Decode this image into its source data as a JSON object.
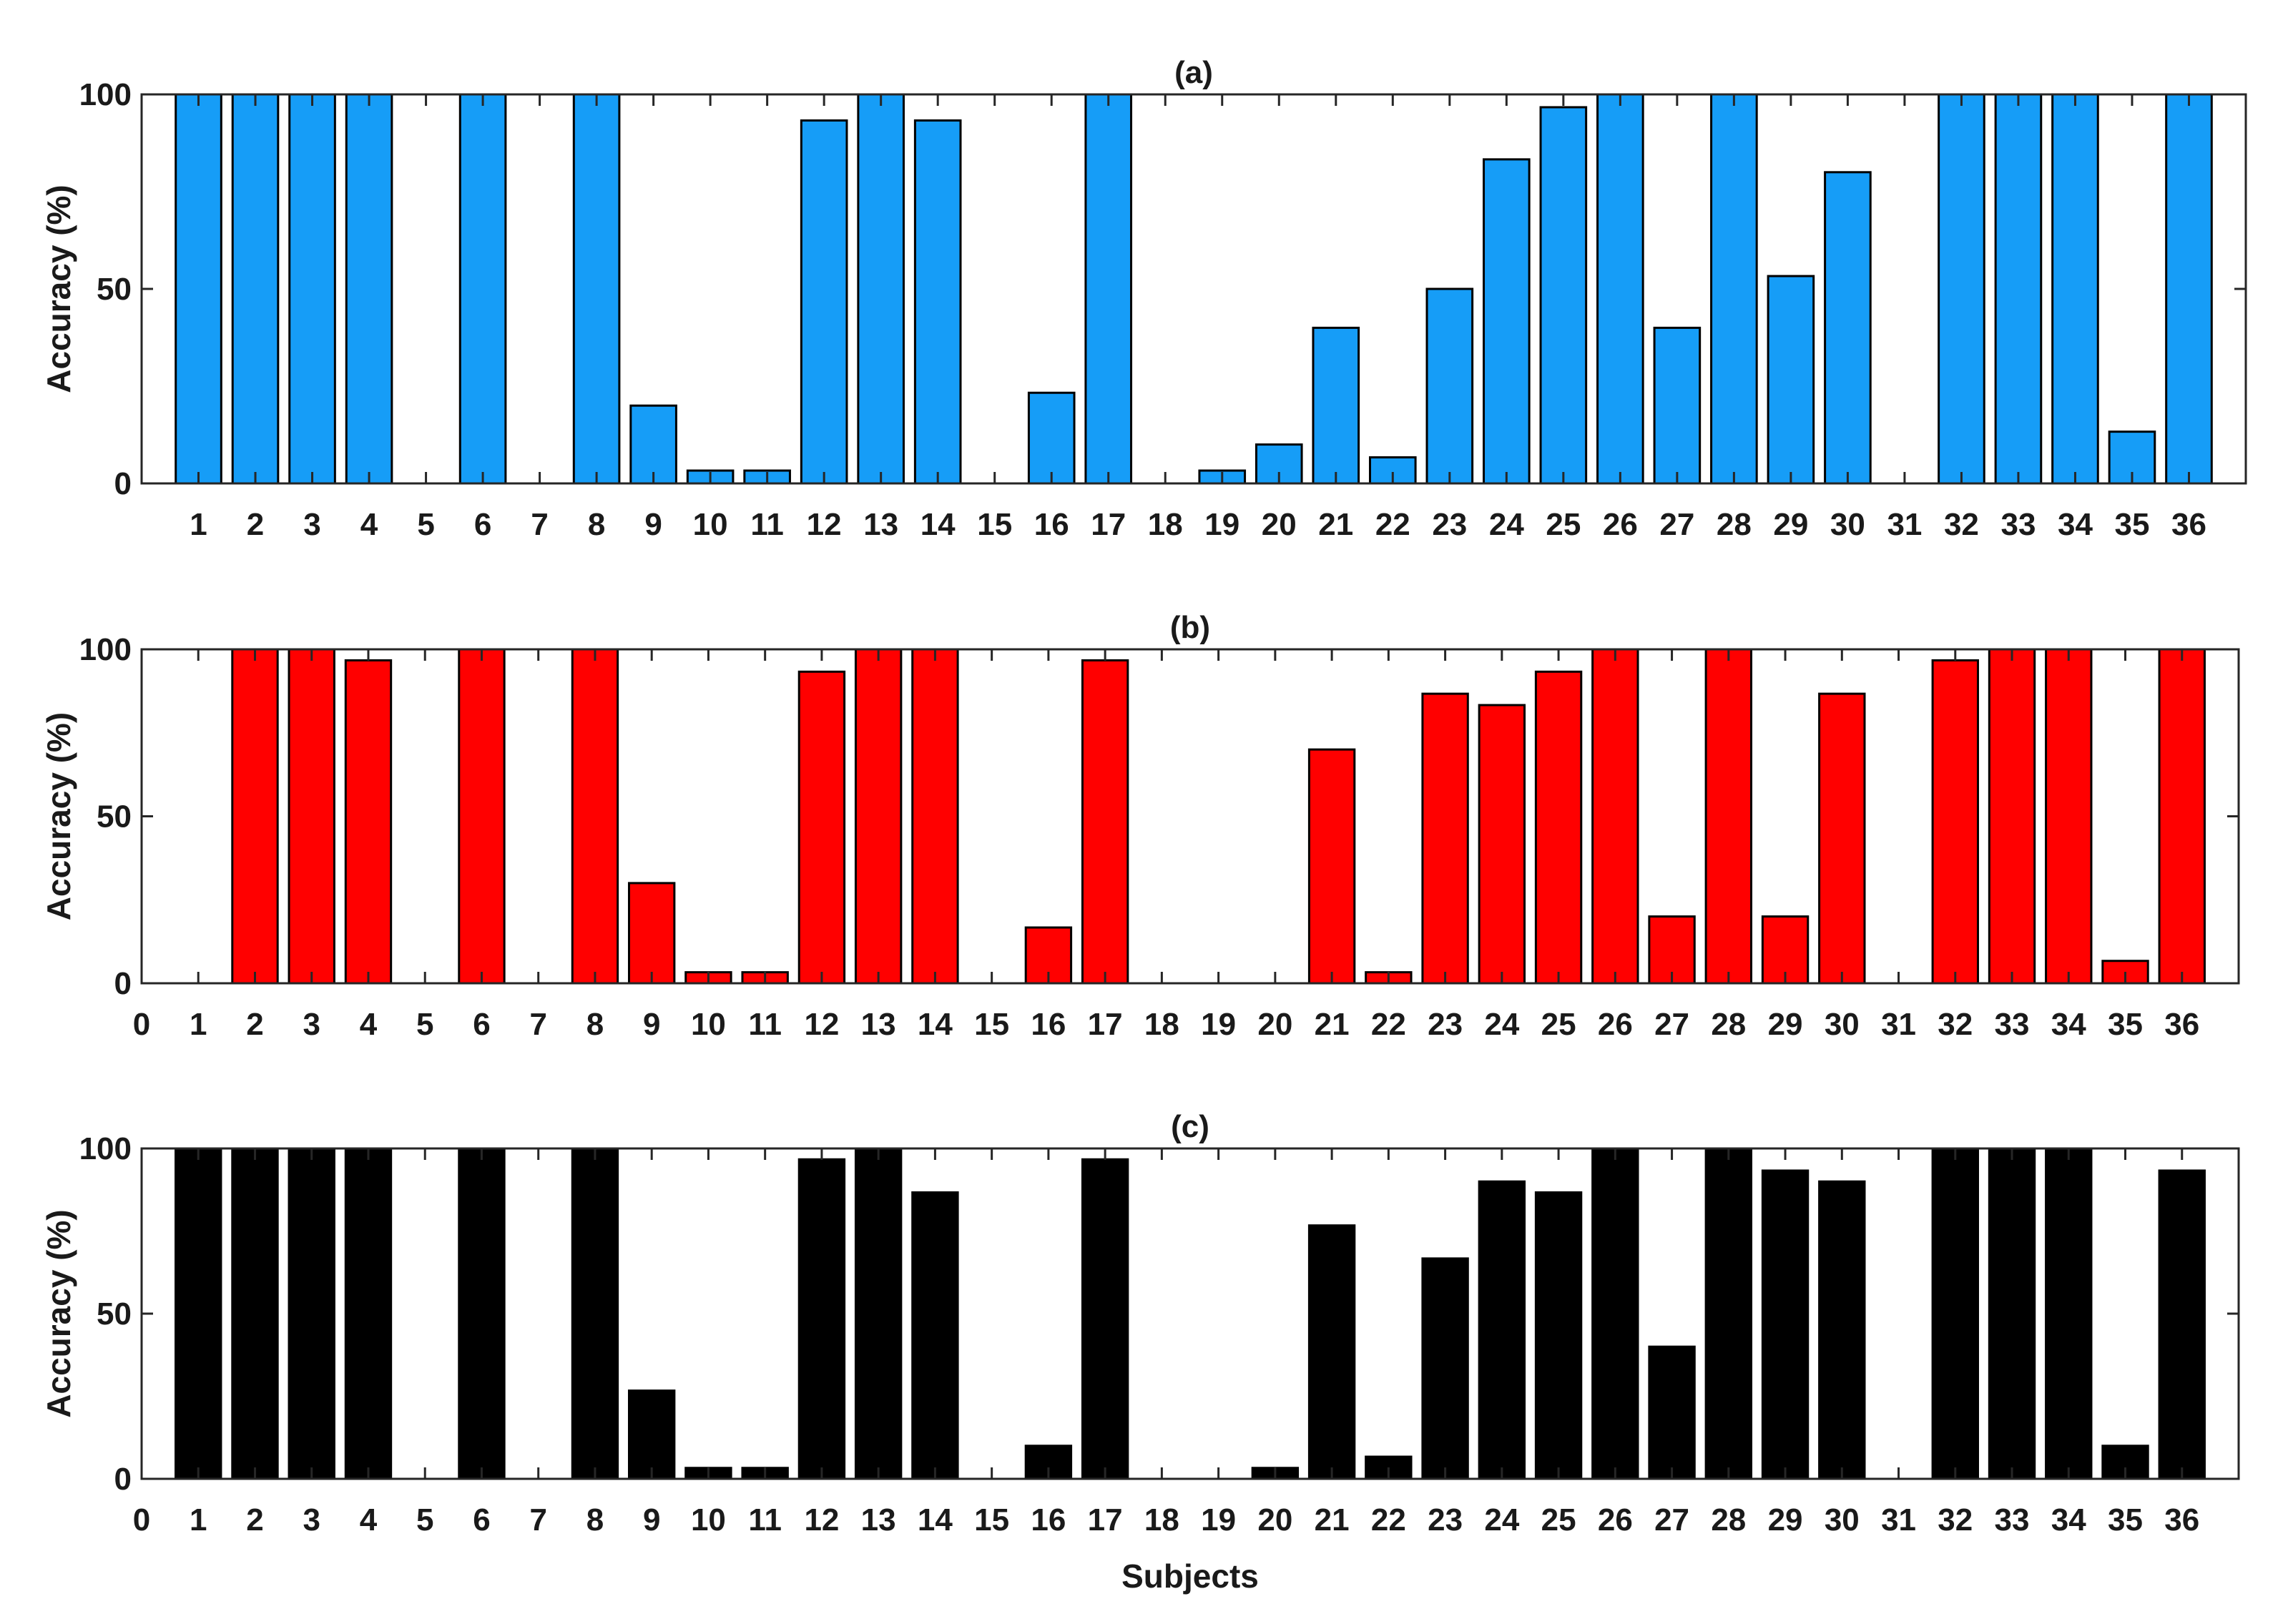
{
  "figure": {
    "xlabel": "Subjects"
  },
  "chart_data": [
    {
      "type": "bar",
      "title": "(a)",
      "xlabel": "",
      "ylabel": "Accuracy (%)",
      "ylim": [
        0,
        100
      ],
      "yticks": [
        0,
        50,
        100
      ],
      "xlim": [
        0,
        37
      ],
      "xticks": [
        1,
        2,
        3,
        4,
        5,
        6,
        7,
        8,
        9,
        10,
        11,
        12,
        13,
        14,
        15,
        16,
        17,
        18,
        19,
        20,
        21,
        22,
        23,
        24,
        25,
        26,
        27,
        28,
        29,
        30,
        31,
        32,
        33,
        34,
        35,
        36
      ],
      "grid": false,
      "color": "#169df7",
      "categories": [
        1,
        2,
        3,
        4,
        5,
        6,
        7,
        8,
        9,
        10,
        11,
        12,
        13,
        14,
        15,
        16,
        17,
        18,
        19,
        20,
        21,
        22,
        23,
        24,
        25,
        26,
        27,
        28,
        29,
        30,
        31,
        32,
        33,
        34,
        35,
        36
      ],
      "values": [
        100,
        100,
        100,
        100,
        0,
        100,
        0,
        100,
        20,
        3.3,
        3.3,
        93.3,
        100,
        93.3,
        0,
        23.3,
        100,
        0,
        3.3,
        10,
        40,
        6.7,
        50,
        83.3,
        96.7,
        100,
        40,
        100,
        53.3,
        80,
        0,
        100,
        100,
        100,
        13.3,
        100
      ]
    },
    {
      "type": "bar",
      "title": "(b)",
      "xlabel": "",
      "ylabel": "Accuracy (%)",
      "ylim": [
        0,
        100
      ],
      "yticks": [
        0,
        50,
        100
      ],
      "xlim": [
        0,
        37
      ],
      "xticks": [
        0,
        1,
        2,
        3,
        4,
        5,
        6,
        7,
        8,
        9,
        10,
        11,
        12,
        13,
        14,
        15,
        16,
        17,
        18,
        19,
        20,
        21,
        22,
        23,
        24,
        25,
        26,
        27,
        28,
        29,
        30,
        31,
        32,
        33,
        34,
        35,
        36
      ],
      "grid": false,
      "color": "#ff0000",
      "categories": [
        1,
        2,
        3,
        4,
        5,
        6,
        7,
        8,
        9,
        10,
        11,
        12,
        13,
        14,
        15,
        16,
        17,
        18,
        19,
        20,
        21,
        22,
        23,
        24,
        25,
        26,
        27,
        28,
        29,
        30,
        31,
        32,
        33,
        34,
        35,
        36
      ],
      "values": [
        0,
        100,
        100,
        96.7,
        0,
        100,
        0,
        100,
        30,
        3.3,
        3.3,
        93.3,
        100,
        100,
        0,
        16.7,
        96.7,
        0,
        0,
        0,
        70,
        3.3,
        86.7,
        83.3,
        93.3,
        100,
        20,
        100,
        20,
        86.7,
        0,
        96.7,
        100,
        100,
        6.7,
        100
      ]
    },
    {
      "type": "bar",
      "title": "(c)",
      "xlabel": "Subjects",
      "ylabel": "Accuracy (%)",
      "ylim": [
        0,
        100
      ],
      "yticks": [
        0,
        50,
        100
      ],
      "xlim": [
        0,
        37
      ],
      "xticks": [
        0,
        1,
        2,
        3,
        4,
        5,
        6,
        7,
        8,
        9,
        10,
        11,
        12,
        13,
        14,
        15,
        16,
        17,
        18,
        19,
        20,
        21,
        22,
        23,
        24,
        25,
        26,
        27,
        28,
        29,
        30,
        31,
        32,
        33,
        34,
        35,
        36
      ],
      "grid": false,
      "color": "#000000",
      "categories": [
        1,
        2,
        3,
        4,
        5,
        6,
        7,
        8,
        9,
        10,
        11,
        12,
        13,
        14,
        15,
        16,
        17,
        18,
        19,
        20,
        21,
        22,
        23,
        24,
        25,
        26,
        27,
        28,
        29,
        30,
        31,
        32,
        33,
        34,
        35,
        36
      ],
      "values": [
        100,
        100,
        100,
        100,
        0,
        100,
        0,
        100,
        26.7,
        3.3,
        3.3,
        96.7,
        100,
        86.7,
        0,
        10,
        96.7,
        0,
        0,
        3.3,
        76.7,
        6.7,
        66.7,
        90,
        86.7,
        100,
        40,
        100,
        93.3,
        90,
        0,
        100,
        100,
        100,
        10,
        93.3
      ]
    }
  ]
}
